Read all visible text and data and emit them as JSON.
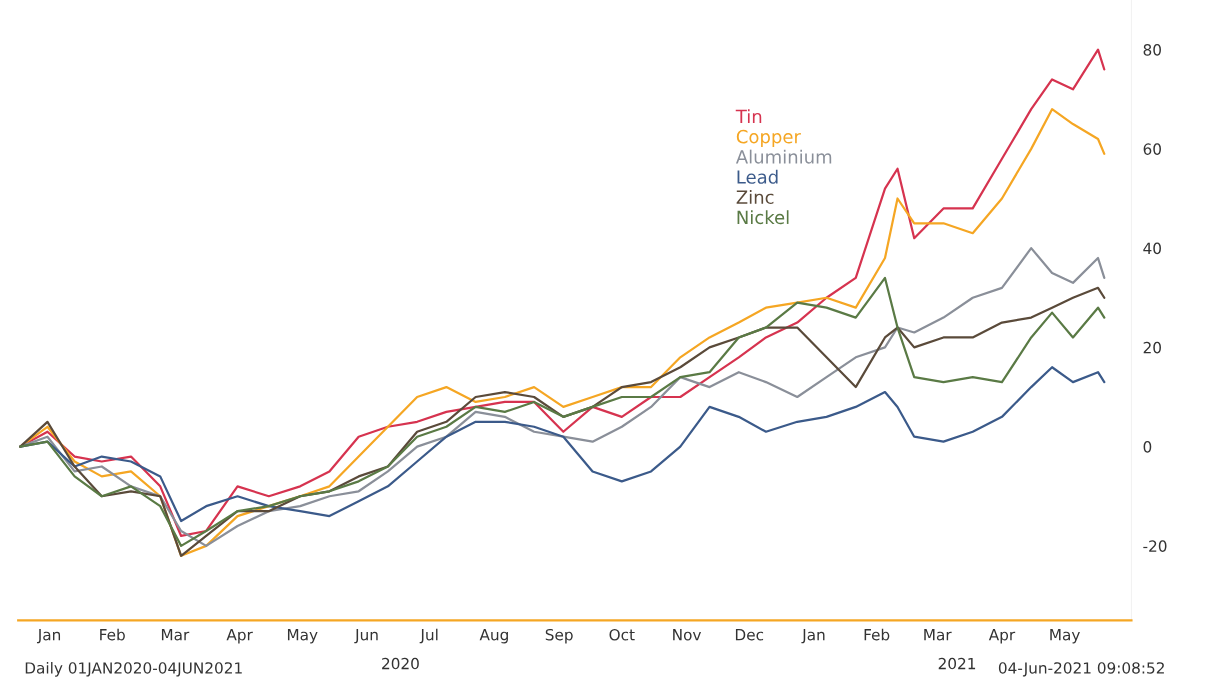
{
  "chart_data": {
    "type": "line",
    "x": [
      "2020-01-02",
      "2020-01-15",
      "2020-01-28",
      "2020-02-10",
      "2020-02-24",
      "2020-03-09",
      "2020-03-19",
      "2020-03-31",
      "2020-04-15",
      "2020-04-30",
      "2020-05-15",
      "2020-05-29",
      "2020-06-12",
      "2020-06-26",
      "2020-07-10",
      "2020-07-24",
      "2020-08-07",
      "2020-08-21",
      "2020-09-04",
      "2020-09-18",
      "2020-10-02",
      "2020-10-16",
      "2020-10-30",
      "2020-11-13",
      "2020-11-27",
      "2020-12-11",
      "2020-12-24",
      "2021-01-08",
      "2021-01-22",
      "2021-02-05",
      "2021-02-19",
      "2021-02-25",
      "2021-03-05",
      "2021-03-19",
      "2021-04-02",
      "2021-04-16",
      "2021-04-30",
      "2021-05-10",
      "2021-05-20",
      "2021-06-01",
      "2021-06-04"
    ],
    "series": [
      {
        "name": "Tin",
        "color": "#d6334f",
        "values": [
          0,
          3,
          -2,
          -3,
          -2,
          -8,
          -18,
          -17,
          -8,
          -10,
          -8,
          -5,
          2,
          4,
          5,
          7,
          8,
          9,
          9,
          3,
          8,
          6,
          10,
          10,
          14,
          18,
          22,
          25,
          30,
          34,
          52,
          56,
          42,
          48,
          48,
          58,
          68,
          74,
          72,
          80,
          76
        ]
      },
      {
        "name": "Copper",
        "color": "#f5a623",
        "values": [
          0,
          4,
          -3,
          -6,
          -5,
          -10,
          -22,
          -20,
          -14,
          -12,
          -10,
          -8,
          -2,
          4,
          10,
          12,
          9,
          10,
          12,
          8,
          10,
          12,
          12,
          18,
          22,
          25,
          28,
          29,
          30,
          28,
          38,
          50,
          45,
          45,
          43,
          50,
          60,
          68,
          65,
          62,
          59
        ]
      },
      {
        "name": "Aluminium",
        "color": "#8a8f99",
        "values": [
          0,
          2,
          -5,
          -4,
          -8,
          -10,
          -17,
          -20,
          -16,
          -13,
          -12,
          -10,
          -9,
          -5,
          0,
          2,
          7,
          6,
          3,
          2,
          1,
          4,
          8,
          14,
          12,
          15,
          13,
          10,
          14,
          18,
          20,
          24,
          23,
          26,
          30,
          32,
          40,
          35,
          33,
          38,
          34
        ]
      },
      {
        "name": "Lead",
        "color": "#3b5a8a",
        "values": [
          0,
          1,
          -4,
          -2,
          -3,
          -6,
          -15,
          -12,
          -10,
          -12,
          -13,
          -14,
          -11,
          -8,
          -3,
          2,
          5,
          5,
          4,
          2,
          -5,
          -7,
          -5,
          0,
          8,
          6,
          3,
          5,
          6,
          8,
          11,
          8,
          2,
          1,
          3,
          6,
          12,
          16,
          13,
          15,
          13
        ]
      },
      {
        "name": "Zinc",
        "color": "#5a4a3a",
        "values": [
          0,
          5,
          -4,
          -10,
          -9,
          -10,
          -22,
          -18,
          -13,
          -13,
          -10,
          -9,
          -6,
          -4,
          3,
          5,
          10,
          11,
          10,
          6,
          8,
          12,
          13,
          16,
          20,
          22,
          24,
          24,
          18,
          12,
          22,
          24,
          20,
          22,
          22,
          25,
          26,
          28,
          30,
          32,
          30
        ]
      },
      {
        "name": "Nickel",
        "color": "#5a7a45",
        "values": [
          0,
          1,
          -6,
          -10,
          -8,
          -12,
          -20,
          -17,
          -13,
          -12,
          -10,
          -9,
          -7,
          -4,
          2,
          4,
          8,
          7,
          9,
          6,
          8,
          10,
          10,
          14,
          15,
          22,
          24,
          29,
          28,
          26,
          34,
          24,
          14,
          13,
          14,
          13,
          22,
          27,
          22,
          28,
          26
        ]
      }
    ],
    "xlim": [
      "2020-01-01",
      "2021-06-17"
    ],
    "xticks": [
      {
        "value": "2020-01-16",
        "label": "Jan"
      },
      {
        "value": "2020-02-15",
        "label": "Feb"
      },
      {
        "value": "2020-03-16",
        "label": "Mar"
      },
      {
        "value": "2020-04-16",
        "label": "Apr"
      },
      {
        "value": "2020-05-16",
        "label": "May"
      },
      {
        "value": "2020-06-16",
        "label": "Jun"
      },
      {
        "value": "2020-07-16",
        "label": "Jul"
      },
      {
        "value": "2020-08-16",
        "label": "Aug"
      },
      {
        "value": "2020-09-16",
        "label": "Sep"
      },
      {
        "value": "2020-10-16",
        "label": "Oct"
      },
      {
        "value": "2020-11-16",
        "label": "Nov"
      },
      {
        "value": "2020-12-16",
        "label": "Dec"
      },
      {
        "value": "2021-01-16",
        "label": "Jan"
      },
      {
        "value": "2021-02-15",
        "label": "Feb"
      },
      {
        "value": "2021-03-16",
        "label": "Mar"
      },
      {
        "value": "2021-04-16",
        "label": "Apr"
      },
      {
        "value": "2021-05-16",
        "label": "May"
      }
    ],
    "ylim": [
      -35,
      90
    ],
    "yticks": [
      -20,
      0,
      20,
      40,
      60,
      80
    ],
    "grid": false,
    "legend": "top",
    "annotations": [
      "2020",
      "2021",
      "Daily 01JAN2020-04JUN2021",
      "04-Jun-2021 09:08:52"
    ]
  }
}
